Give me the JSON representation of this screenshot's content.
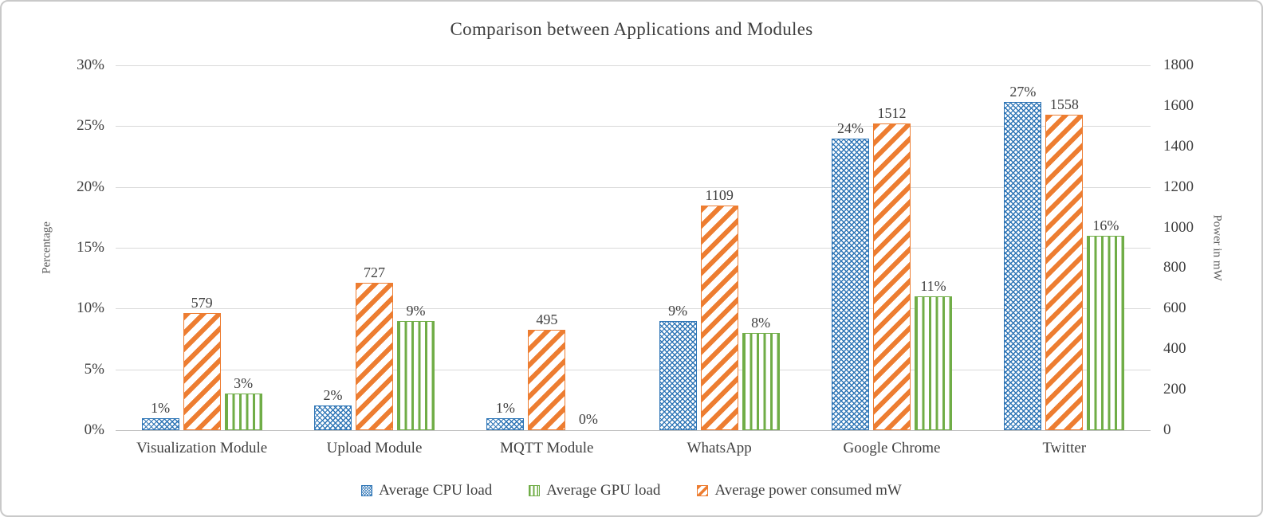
{
  "chart_data": {
    "type": "bar",
    "title": "Comparison between Applications and Modules",
    "categories": [
      "Visualization Module",
      "Upload Module",
      "MQTT Module",
      "WhatsApp",
      "Google Chrome",
      "Twitter"
    ],
    "series": [
      {
        "key": "cpu",
        "name": "Average CPU load",
        "axis": "left",
        "color": "#2E75B6",
        "pattern": "diagonal-crosshatch",
        "values": [
          1,
          2,
          1,
          9,
          24,
          27
        ],
        "labels": [
          "1%",
          "2%",
          "1%",
          "9%",
          "24%",
          "27%"
        ]
      },
      {
        "key": "power",
        "name": "Average power consumed mW",
        "axis": "right",
        "color": "#ED7D31",
        "pattern": "diagonal-stripes",
        "values": [
          579,
          727,
          495,
          1109,
          1512,
          1558
        ],
        "labels": [
          "579",
          "727",
          "495",
          "1109",
          "1512",
          "1558"
        ]
      },
      {
        "key": "gpu",
        "name": "Average GPU load",
        "axis": "left",
        "color": "#70AD47",
        "pattern": "vertical-stripes",
        "values": [
          3,
          9,
          0,
          8,
          11,
          16
        ],
        "labels": [
          "3%",
          "9%",
          "0%",
          "8%",
          "11%",
          "16%"
        ]
      }
    ],
    "left_axis": {
      "label": "Percentage",
      "max": 30,
      "ticks": [
        "0%",
        "5%",
        "10%",
        "15%",
        "20%",
        "25%",
        "30%"
      ]
    },
    "right_axis": {
      "label": "Power in mW",
      "max": 1800,
      "ticks": [
        "0",
        "200",
        "400",
        "600",
        "800",
        "1000",
        "1200",
        "1400",
        "1600",
        "1800"
      ]
    },
    "legend": {
      "position": "bottom",
      "order": [
        "Average CPU load",
        "Average GPU load",
        "Average power consumed mW"
      ]
    },
    "grid": true,
    "colors": {
      "grid": "#D9D9D9",
      "axis_line": "#BFBFBF",
      "text": "#404040",
      "background": "#FFFFFF",
      "border": "#C9C9C9"
    }
  }
}
